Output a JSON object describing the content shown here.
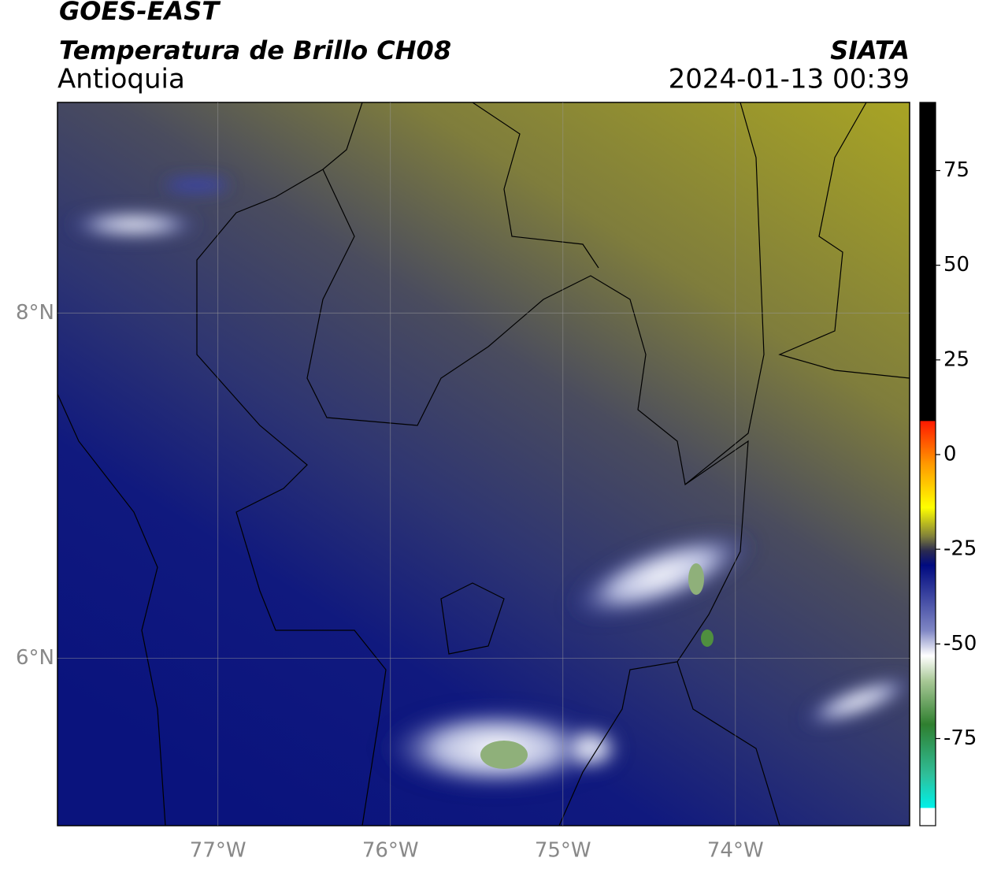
{
  "header": {
    "title": "GOES-EAST",
    "subtitle": "Temperatura de Brillo CH08",
    "region": "Antioquia",
    "source": "SIATA",
    "datetime": "2024-01-13 00:39"
  },
  "map": {
    "xlim": [
      -77.93,
      -72.99
    ],
    "ylim": [
      5.03,
      9.22
    ],
    "xticks": [
      {
        "value": -77,
        "label": "77°W"
      },
      {
        "value": -76,
        "label": "76°W"
      },
      {
        "value": -75,
        "label": "75°W"
      },
      {
        "value": -74,
        "label": "74°W"
      }
    ],
    "yticks": [
      {
        "value": 6,
        "label": "6°N"
      },
      {
        "value": 8,
        "label": "8°N"
      }
    ]
  },
  "colorbar": {
    "lim": [
      -98,
      93
    ],
    "ticks": [
      75,
      50,
      25,
      0,
      -25,
      -50,
      -75
    ]
  }
}
